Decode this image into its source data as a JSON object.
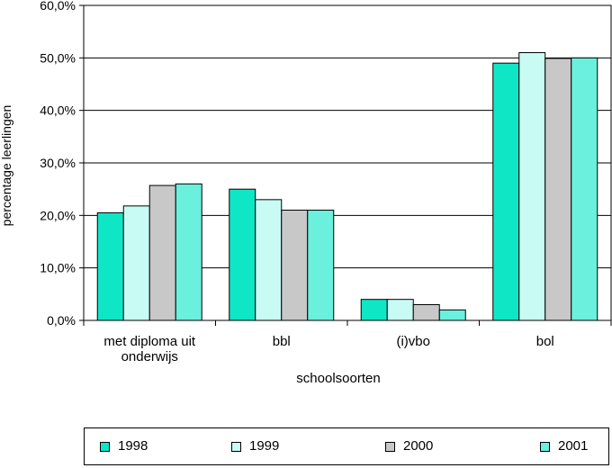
{
  "chart_data": {
    "type": "bar",
    "categories": [
      [
        "met diploma uit",
        "onderwijs"
      ],
      [
        "bbl"
      ],
      [
        "(i)vbo"
      ],
      [
        "bol"
      ]
    ],
    "series": [
      {
        "name": "1998",
        "color": "#0fe6c6",
        "values": [
          20.5,
          25.0,
          4.0,
          49.0
        ]
      },
      {
        "name": "1999",
        "color": "#c8fbf3",
        "values": [
          21.8,
          23.0,
          4.0,
          51.0
        ]
      },
      {
        "name": "2000",
        "color": "#c8c8c8",
        "values": [
          25.7,
          21.0,
          3.0,
          49.9
        ]
      },
      {
        "name": "2001",
        "color": "#6af0dc",
        "values": [
          26.0,
          21.0,
          2.0,
          50.0
        ]
      }
    ],
    "yticks": [
      "0,0%",
      "10,0%",
      "20,0%",
      "30,0%",
      "40,0%",
      "50,0%",
      "60,0%"
    ],
    "ylim": [
      0,
      60
    ],
    "xlabel": "schoolsoorten",
    "ylabel": "percentage leerlingen",
    "grid": true,
    "legend_position": "bottom"
  }
}
